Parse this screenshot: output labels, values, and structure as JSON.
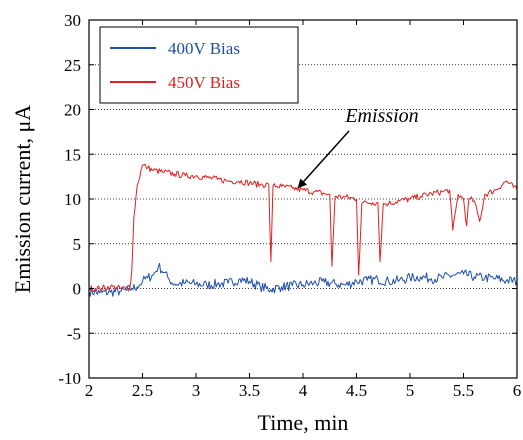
{
  "chart_data": {
    "type": "line",
    "xlabel": "Time, min",
    "ylabel": "Emission current, μA",
    "xlim": [
      2,
      6
    ],
    "ylim": [
      -10,
      30
    ],
    "xticks": [
      2,
      2.5,
      3,
      3.5,
      4,
      4.5,
      5,
      5.5,
      6
    ],
    "xtick_labels": [
      "2",
      "2.5",
      "3",
      "3.5",
      "4",
      "4.5",
      "5",
      "5.5",
      "6"
    ],
    "yticks": [
      -10,
      -5,
      0,
      5,
      10,
      15,
      20,
      25,
      30
    ],
    "ytick_labels": [
      "-10",
      "-5",
      "0",
      "5",
      "10",
      "15",
      "20",
      "25",
      "30"
    ],
    "grid": "horizontal dotted",
    "legend_position": "top-left",
    "annotation": {
      "text": "Emission",
      "points_to": [
        3.95,
        11.2
      ]
    },
    "series": [
      {
        "name": "400V Bias",
        "color": "#1f4fa8",
        "x": [
          2.0,
          2.1,
          2.2,
          2.3,
          2.35,
          2.4,
          2.45,
          2.5,
          2.55,
          2.6,
          2.65,
          2.7,
          2.75,
          2.8,
          2.9,
          3.0,
          3.1,
          3.2,
          3.3,
          3.4,
          3.5,
          3.6,
          3.7,
          3.8,
          3.9,
          4.0,
          4.1,
          4.2,
          4.3,
          4.4,
          4.5,
          4.6,
          4.7,
          4.8,
          4.9,
          5.0,
          5.1,
          5.2,
          5.3,
          5.4,
          5.5,
          5.6,
          5.7,
          5.8,
          5.9,
          6.0
        ],
        "y": [
          -0.3,
          -0.5,
          -0.4,
          -0.3,
          -0.2,
          0.0,
          0.2,
          0.8,
          1.2,
          1.5,
          2.5,
          1.8,
          1.0,
          0.5,
          0.6,
          0.5,
          0.4,
          0.5,
          0.6,
          1.0,
          0.8,
          0.2,
          -0.1,
          0.2,
          0.3,
          0.4,
          0.6,
          0.7,
          0.5,
          0.4,
          0.8,
          0.9,
          1.0,
          0.8,
          0.9,
          1.2,
          1.3,
          1.1,
          1.2,
          1.5,
          1.6,
          1.3,
          1.2,
          1.1,
          0.9,
          0.8
        ]
      },
      {
        "name": "450V Bias",
        "color": "#e02020",
        "x": [
          2.0,
          2.1,
          2.2,
          2.3,
          2.38,
          2.4,
          2.42,
          2.45,
          2.5,
          2.55,
          2.6,
          2.7,
          2.8,
          2.9,
          3.0,
          3.1,
          3.2,
          3.3,
          3.4,
          3.5,
          3.6,
          3.68,
          3.7,
          3.72,
          3.8,
          3.9,
          4.0,
          4.1,
          4.2,
          4.25,
          4.27,
          4.3,
          4.4,
          4.5,
          4.52,
          4.55,
          4.6,
          4.65,
          4.7,
          4.72,
          4.75,
          4.8,
          4.9,
          5.0,
          5.1,
          5.2,
          5.3,
          5.37,
          5.4,
          5.45,
          5.5,
          5.53,
          5.55,
          5.6,
          5.65,
          5.7,
          5.8,
          5.9,
          6.0
        ],
        "y": [
          0.0,
          0.0,
          0.2,
          0.0,
          0.0,
          2.0,
          8.0,
          11.5,
          13.8,
          13.5,
          13.2,
          13.0,
          12.8,
          12.6,
          12.6,
          12.4,
          12.2,
          12.0,
          12.0,
          11.8,
          11.6,
          11.6,
          3.0,
          11.5,
          11.4,
          11.2,
          11.0,
          10.8,
          10.6,
          10.5,
          2.5,
          10.3,
          10.2,
          10.0,
          1.5,
          9.5,
          9.6,
          9.6,
          9.6,
          3.0,
          9.5,
          9.5,
          9.8,
          10.0,
          10.3,
          10.6,
          10.8,
          11.0,
          6.5,
          10.5,
          10.0,
          7.0,
          10.0,
          9.8,
          7.5,
          10.5,
          11.0,
          12.0,
          11.0
        ]
      }
    ]
  }
}
